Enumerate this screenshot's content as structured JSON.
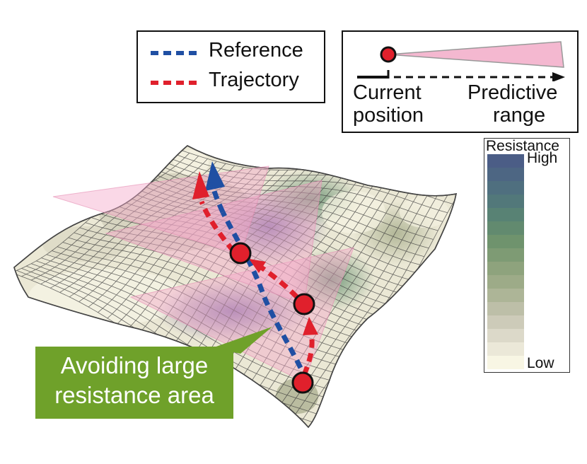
{
  "legend": {
    "reference_label": "Reference",
    "trajectory_label": "Trajectory",
    "reference_color": "#1f4fa3",
    "trajectory_color": "#e0202c"
  },
  "key": {
    "current_label_line1": "Current",
    "current_label_line2": "position",
    "predictive_label_line1": "Predictive",
    "predictive_label_line2": "range",
    "cone_color": "#f4b8d0",
    "dot_color": "#e0202c"
  },
  "colorbar": {
    "title": "Resistance",
    "high_label": "High",
    "low_label": "Low",
    "steps": [
      "#4b5d86",
      "#4d6683",
      "#4f6f7f",
      "#52787a",
      "#588274",
      "#628a6f",
      "#6f936d",
      "#7e9b74",
      "#8ea37d",
      "#9dab88",
      "#adb597",
      "#bdbfa8",
      "#cdcbb9",
      "#dcd9c9",
      "#ebe8d8",
      "#f8f6e4"
    ]
  },
  "callout": {
    "line1": "Avoiding large",
    "line2": "resistance area",
    "color": "#6fa12a"
  }
}
